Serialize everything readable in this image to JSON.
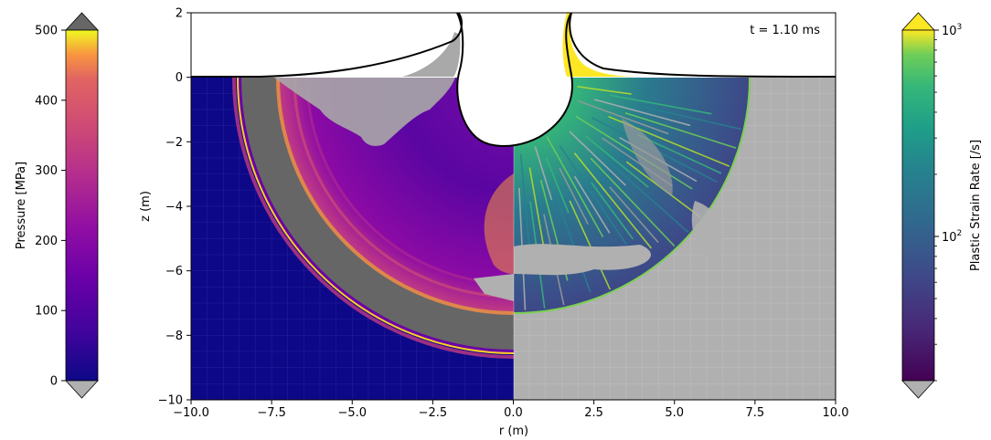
{
  "chart_data": {
    "type": "heatmap",
    "annotation": "t =  1.10 ms",
    "xlabel": "r (m)",
    "ylabel": "z (m)",
    "xlim": [
      -10,
      10
    ],
    "ylim": [
      -10,
      2
    ],
    "x_ticks": [
      -10.0,
      -7.5,
      -5.0,
      -2.5,
      0.0,
      2.5,
      5.0,
      7.5,
      10.0
    ],
    "x_tick_labels": [
      "−10.0",
      "−7.5",
      "−5.0",
      "−2.5",
      "0.0",
      "2.5",
      "5.0",
      "7.5",
      "10.0"
    ],
    "y_ticks": [
      2,
      0,
      -2,
      -4,
      -6,
      -8,
      -10
    ],
    "y_tick_labels": [
      "2",
      "0",
      "−2",
      "−4",
      "−6",
      "−8",
      "−10"
    ],
    "left_field": "Pressure",
    "right_field": "Plastic Strain Rate",
    "crater": {
      "depth_m": 2.2,
      "rim_radius_m": 1.6,
      "shock_front_radius_m": 8.6,
      "gray_band_inner_radius_m": 7.2
    },
    "colorbar_left": {
      "label": "Pressure [MPa]",
      "scale": "linear",
      "range": [
        0,
        500
      ],
      "ticks": [
        0,
        100,
        200,
        300,
        400,
        500
      ],
      "colormap": "plasma",
      "over_color": "#666666",
      "under_color": "#b0b0b0"
    },
    "colorbar_right": {
      "label": "Plastic Strain Rate [/s]",
      "scale": "log",
      "range": [
        20,
        1000
      ],
      "tick_labels": [
        {
          "value": 100,
          "base": "10",
          "exp": "2"
        },
        {
          "value": 1000,
          "base": "10",
          "exp": "3"
        }
      ],
      "colormap": "viridis",
      "over_color": "#fde725",
      "under_color": "#b0b0b0"
    }
  }
}
